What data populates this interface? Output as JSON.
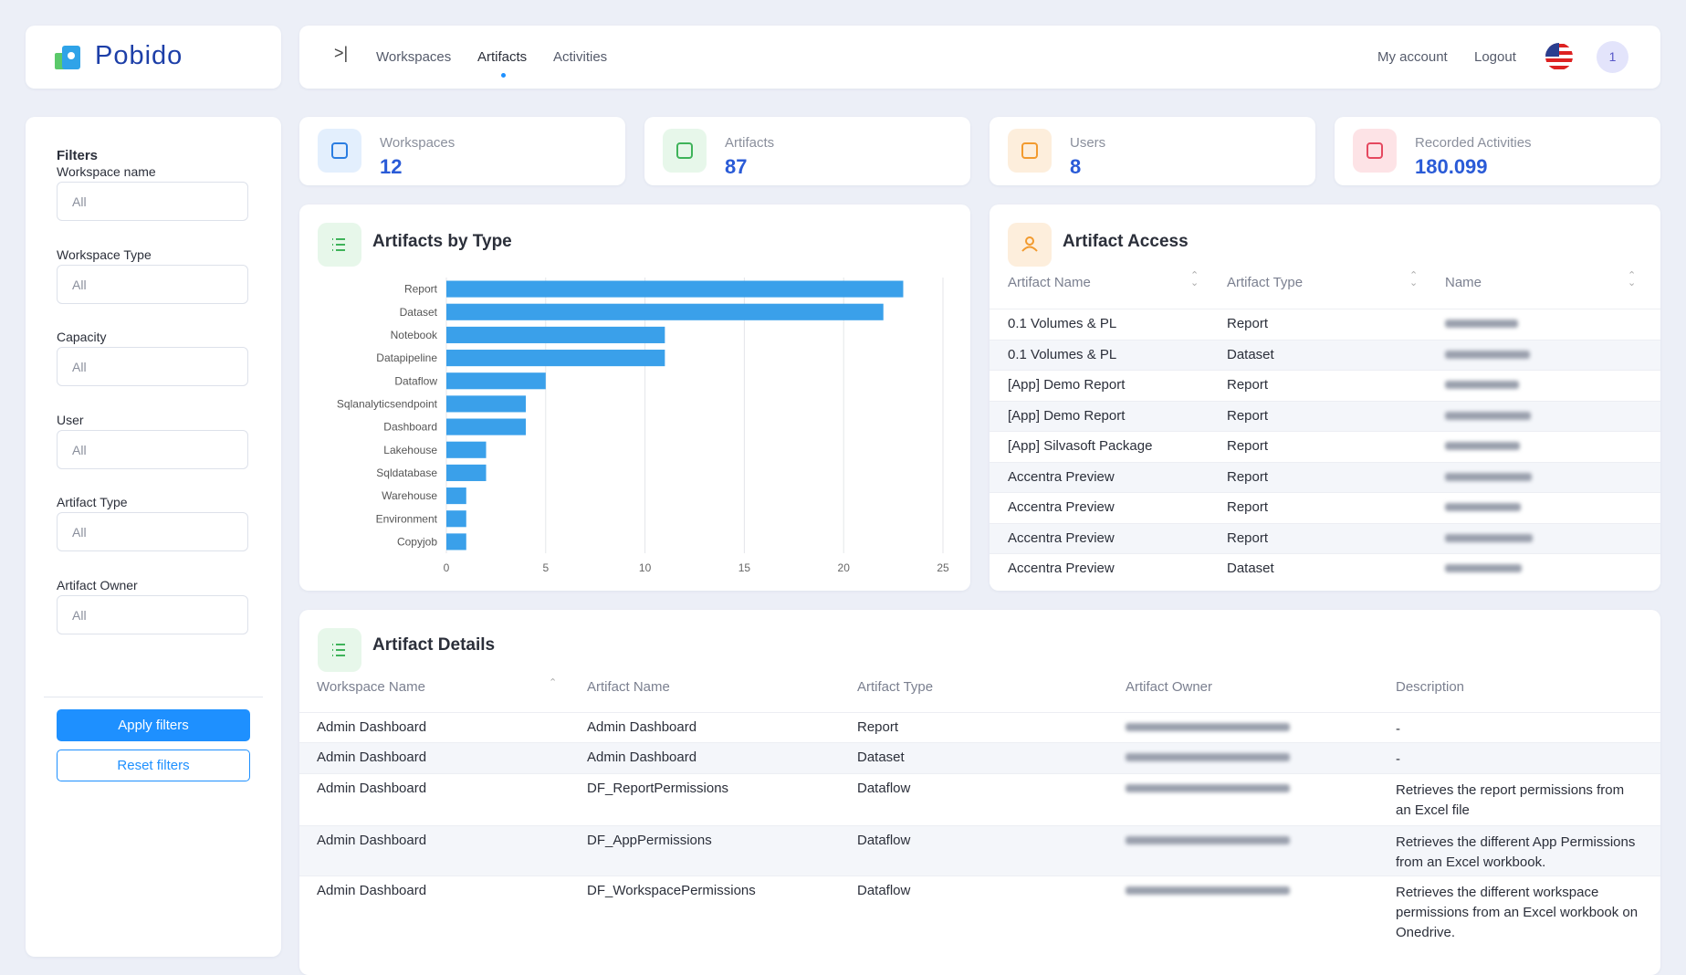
{
  "header": {
    "logo": "Pobido",
    "nav": [
      "Workspaces",
      "Artifacts",
      "Activities"
    ],
    "account": "My account",
    "logout": "Logout",
    "avatar": "1"
  },
  "filters": {
    "title": "Filters",
    "fields": [
      {
        "label": "Workspace name",
        "placeholder": "All"
      },
      {
        "label": "Workspace Type",
        "placeholder": "All"
      },
      {
        "label": "Capacity",
        "placeholder": "All"
      },
      {
        "label": "User",
        "placeholder": "All"
      },
      {
        "label": "Artifact Type",
        "placeholder": "All"
      },
      {
        "label": "Artifact Owner",
        "placeholder": "All"
      }
    ],
    "apply": "Apply filters",
    "reset": "Reset filters"
  },
  "stats": [
    {
      "label": "Workspaces",
      "value": 12
    },
    {
      "label": "Artifacts",
      "value": 87
    },
    {
      "label": "Users",
      "value": 8
    },
    {
      "label": "Recorded Activities",
      "value": {
        "value": 180099,
        "label": "180.099"
      }
    }
  ],
  "chart_data": {
    "type": "bar",
    "orientation": "horizontal",
    "title": "Artifacts by Type",
    "categories": [
      "Report",
      "Dataset",
      "Notebook",
      "Datapipeline",
      "Dataflow",
      "Sqlanalyticsendpoint",
      "Dashboard",
      "Lakehouse",
      "Sqldatabase",
      "Warehouse",
      "Environment",
      "Copyjob"
    ],
    "values": [
      23,
      22,
      11,
      11,
      5,
      4,
      4,
      2,
      2,
      1,
      1,
      1
    ],
    "color": "#3aa0ea",
    "xlim": [
      0,
      25
    ],
    "xticks": [
      0,
      5,
      10,
      15,
      20,
      25
    ],
    "grid": true
  },
  "artifact_access": {
    "title": "Artifact Access",
    "columns": [
      "Artifact Name",
      "Artifact Type",
      "Name"
    ],
    "rows": [
      {
        "artifact": "0.1 Volumes & PL",
        "type": "Report"
      },
      {
        "artifact": "0.1 Volumes & PL",
        "type": "Dataset"
      },
      {
        "artifact": "[App] Demo Report",
        "type": "Report"
      },
      {
        "artifact": "[App] Demo Report",
        "type": "Report"
      },
      {
        "artifact": "[App] Silvasoft Package",
        "type": "Report"
      },
      {
        "artifact": "Accentra Preview",
        "type": "Report"
      },
      {
        "artifact": "Accentra Preview",
        "type": "Report"
      },
      {
        "artifact": "Accentra Preview",
        "type": "Report"
      },
      {
        "artifact": "Accentra Preview",
        "type": "Dataset"
      }
    ]
  },
  "artifact_details": {
    "title": "Artifact Details",
    "columns": [
      "Workspace Name",
      "Artifact Name",
      "Artifact Type",
      "Artifact Owner",
      "Description"
    ],
    "rows": [
      {
        "workspace": "Admin Dashboard",
        "artifact": "Admin Dashboard",
        "type": "Report",
        "description": "-"
      },
      {
        "workspace": "Admin Dashboard",
        "artifact": "Admin Dashboard",
        "type": "Dataset",
        "description": "-"
      },
      {
        "workspace": "Admin Dashboard",
        "artifact": "DF_ReportPermissions",
        "type": "Dataflow",
        "description": "Retrieves the report permissions from an Excel file"
      },
      {
        "workspace": "Admin Dashboard",
        "artifact": "DF_AppPermissions",
        "type": "Dataflow",
        "description": "Retrieves the different App Permissions from an Excel workbook."
      },
      {
        "workspace": "Admin Dashboard",
        "artifact": "DF_WorkspacePermissions",
        "type": "Dataflow",
        "description": "Retrieves the different workspace permissions from an Excel workbook on Onedrive."
      }
    ]
  }
}
